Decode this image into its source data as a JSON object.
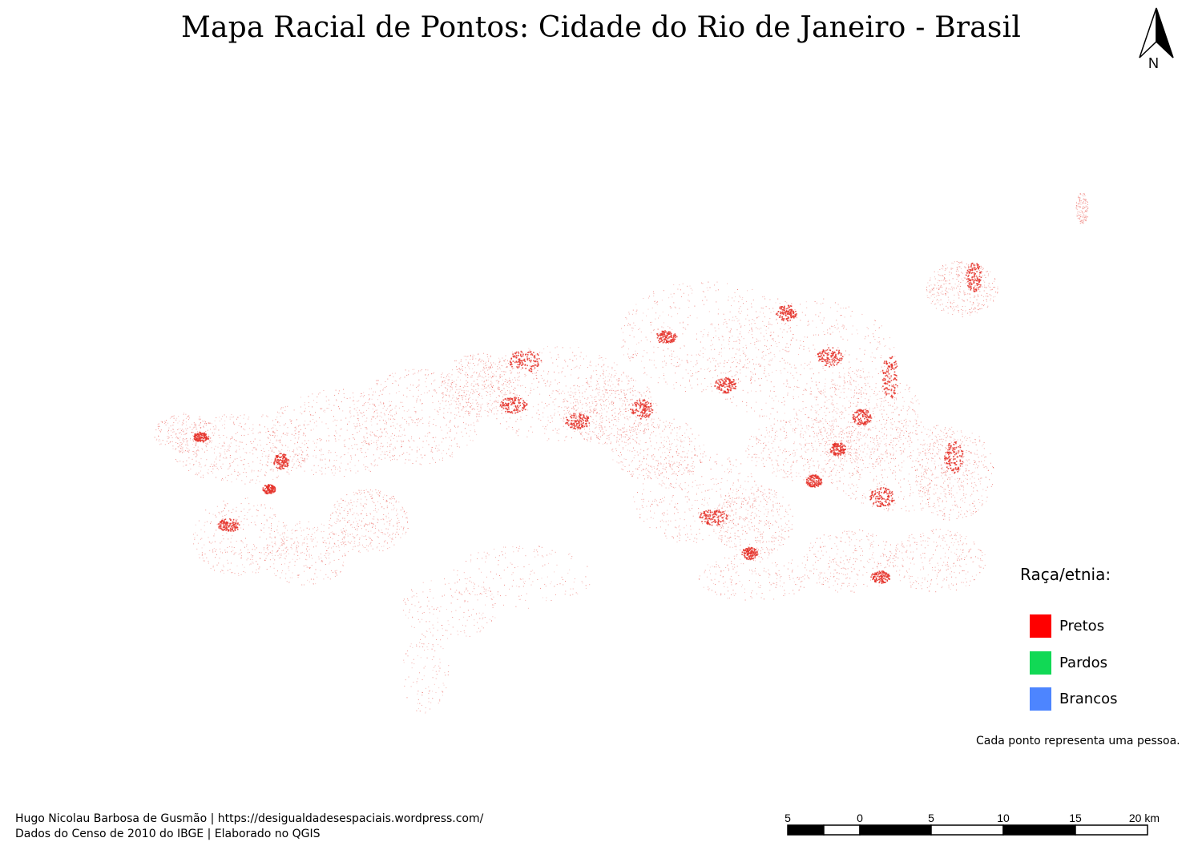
{
  "map": {
    "title": "Mapa Racial de Pontos: Cidade do Rio de Janeiro - Brasil",
    "north_arrow_label": "N",
    "dot_color": "#e5332a"
  },
  "legend": {
    "title": "Raça/etnia:",
    "items": [
      {
        "label": "Pretos",
        "color": "#ff0000"
      },
      {
        "label": "Pardos",
        "color": "#11d955"
      },
      {
        "label": "Brancos",
        "color": "#4d85ff"
      }
    ],
    "note": "Cada ponto representa uma pessoa."
  },
  "credits": {
    "line1": "Hugo Nicolau Barbosa de Gusmão | https://desigualdadesespaciais.wordpress.com/",
    "line2": "Dados do Censo de 2010 do IBGE | Elaborado no QGIS"
  },
  "scalebar": {
    "labels": [
      "5",
      "0",
      "5",
      "10",
      "15",
      "20 km"
    ]
  }
}
